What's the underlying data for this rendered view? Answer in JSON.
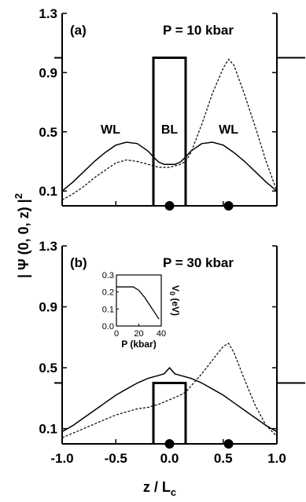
{
  "figure": {
    "ylabel": "| Ψ (0, 0, z) |",
    "ylabel_sup": "2",
    "xlabel": "z / L",
    "xlabel_sub": "c"
  },
  "chart_data": [
    {
      "type": "line",
      "panel_label": "(a)",
      "title": "P = 10 kbar",
      "xlim": [
        -1.0,
        1.0
      ],
      "ylim": [
        0.0,
        1.3
      ],
      "xticks": [
        "-1.0",
        "-0.5",
        "0.0",
        "0.5",
        "1.0"
      ],
      "yticks": [
        "0.1",
        "0.5",
        "0.9",
        "1.3"
      ],
      "regions": [
        {
          "label": "WL",
          "x": -0.55,
          "y": 0.52
        },
        {
          "label": "BL",
          "x": 0.0,
          "y": 0.52
        },
        {
          "label": "WL",
          "x": 0.55,
          "y": 0.52
        }
      ],
      "barrier": {
        "left": -0.15,
        "right": 0.15,
        "height": 1.0
      },
      "dots": [
        0.0,
        0.55
      ],
      "series": [
        {
          "style": "solid",
          "x": [
            -1.0,
            -0.9,
            -0.8,
            -0.7,
            -0.6,
            -0.5,
            -0.4,
            -0.3,
            -0.2,
            -0.15,
            -0.1,
            -0.05,
            0.0,
            0.05,
            0.1,
            0.15,
            0.2,
            0.3,
            0.4,
            0.5,
            0.6,
            0.7,
            0.8,
            0.9,
            1.0
          ],
          "y": [
            0.1,
            0.16,
            0.23,
            0.3,
            0.36,
            0.41,
            0.43,
            0.42,
            0.37,
            0.33,
            0.295,
            0.28,
            0.28,
            0.28,
            0.295,
            0.33,
            0.37,
            0.42,
            0.43,
            0.41,
            0.36,
            0.3,
            0.23,
            0.16,
            0.1
          ]
        },
        {
          "style": "dashed",
          "x": [
            -1.0,
            -0.9,
            -0.8,
            -0.7,
            -0.6,
            -0.5,
            -0.4,
            -0.3,
            -0.2,
            -0.15,
            -0.1,
            0.0,
            0.1,
            0.15,
            0.2,
            0.3,
            0.4,
            0.5,
            0.55,
            0.6,
            0.7,
            0.8,
            0.9,
            1.0
          ],
          "y": [
            0.04,
            0.08,
            0.13,
            0.19,
            0.24,
            0.29,
            0.31,
            0.3,
            0.28,
            0.27,
            0.26,
            0.26,
            0.28,
            0.3,
            0.36,
            0.55,
            0.76,
            0.93,
            0.99,
            0.95,
            0.75,
            0.53,
            0.3,
            0.1
          ]
        }
      ]
    },
    {
      "type": "line",
      "panel_label": "(b)",
      "title": "P = 30 kbar",
      "xlim": [
        -1.0,
        1.0
      ],
      "ylim": [
        0.0,
        1.3
      ],
      "xticks": [
        "-1.0",
        "-0.5",
        "0.0",
        "0.5",
        "1.0"
      ],
      "yticks": [
        "0.1",
        "0.5",
        "0.9",
        "1.3"
      ],
      "barrier": {
        "left": -0.15,
        "right": 0.15,
        "height": 0.4
      },
      "dots": [
        0.0,
        0.55
      ],
      "series": [
        {
          "style": "solid",
          "x": [
            -1.0,
            -0.9,
            -0.8,
            -0.7,
            -0.6,
            -0.5,
            -0.4,
            -0.3,
            -0.2,
            -0.15,
            -0.1,
            -0.05,
            0.0,
            0.05,
            0.1,
            0.15,
            0.2,
            0.3,
            0.4,
            0.5,
            0.6,
            0.7,
            0.8,
            0.9,
            1.0
          ],
          "y": [
            0.08,
            0.12,
            0.17,
            0.22,
            0.27,
            0.32,
            0.36,
            0.4,
            0.43,
            0.44,
            0.45,
            0.46,
            0.5,
            0.46,
            0.45,
            0.44,
            0.43,
            0.4,
            0.36,
            0.32,
            0.27,
            0.22,
            0.17,
            0.12,
            0.08
          ]
        },
        {
          "style": "dashed",
          "x": [
            -1.0,
            -0.9,
            -0.8,
            -0.7,
            -0.6,
            -0.5,
            -0.4,
            -0.3,
            -0.2,
            -0.15,
            -0.1,
            0.0,
            0.1,
            0.15,
            0.2,
            0.3,
            0.4,
            0.5,
            0.55,
            0.6,
            0.7,
            0.8,
            0.9,
            1.0
          ],
          "y": [
            0.04,
            0.07,
            0.1,
            0.13,
            0.16,
            0.19,
            0.21,
            0.23,
            0.24,
            0.25,
            0.26,
            0.29,
            0.32,
            0.34,
            0.38,
            0.46,
            0.55,
            0.64,
            0.66,
            0.6,
            0.42,
            0.25,
            0.12,
            0.05
          ]
        }
      ],
      "inset": {
        "type": "line",
        "xlabel": "P (kbar)",
        "ylabel": "V",
        "ylabel_sub": "0",
        "ylabel_unit": " (eV)",
        "xlim": [
          0,
          40
        ],
        "ylim": [
          0.0,
          0.3
        ],
        "xticks": [
          "0",
          "20",
          "40"
        ],
        "yticks": [
          "0.0",
          "0.1",
          "0.2",
          "0.3"
        ],
        "series": [
          {
            "style": "solid",
            "x": [
              0,
              10,
              15,
              20,
              25,
              30,
              35,
              38
            ],
            "y": [
              0.23,
              0.23,
              0.23,
              0.21,
              0.17,
              0.12,
              0.07,
              0.04
            ]
          }
        ]
      }
    }
  ]
}
